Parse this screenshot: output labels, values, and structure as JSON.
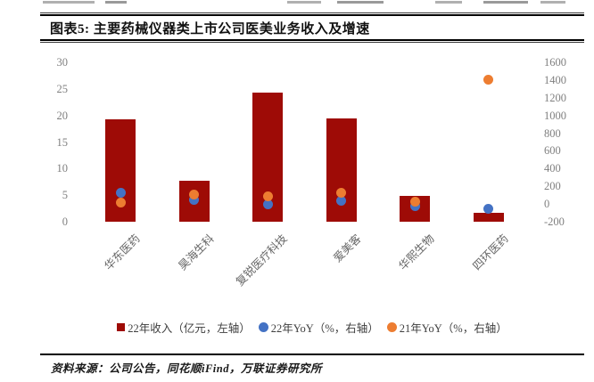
{
  "header": {
    "title": "图表5: 主要药械仪器类上市公司医美业务收入及增速"
  },
  "chart_data": {
    "type": "bar",
    "title": "主要药械仪器类上市公司医美业务收入及增速",
    "categories": [
      "华东医药",
      "昊海生科",
      "复锐医疗科技",
      "爱美客",
      "华熙生物",
      "四环医药"
    ],
    "series": [
      {
        "name": "22年收入（亿元，左轴）",
        "type": "bar",
        "axis": "left",
        "marker": "square",
        "color": "#9E0B06",
        "values": [
          19.3,
          7.7,
          24.3,
          19.4,
          4.8,
          1.7
        ]
      },
      {
        "name": "22年YoY（%，右轴）",
        "type": "scatter",
        "axis": "right",
        "marker": "circle",
        "color": "#4472C4",
        "values": [
          130,
          50,
          0,
          40,
          -20,
          -50
        ]
      },
      {
        "name": "21年YoY（%，右轴）",
        "type": "scatter",
        "axis": "right",
        "marker": "circle",
        "color": "#ED7D31",
        "values": [
          15,
          110,
          85,
          130,
          30,
          1400
        ]
      }
    ],
    "left_axis": {
      "min": 0,
      "max": 30,
      "ticks": [
        30,
        25,
        20,
        15,
        10,
        5,
        0
      ]
    },
    "right_axis": {
      "min": -200,
      "max": 1600,
      "ticks": [
        1600,
        1400,
        1200,
        1000,
        800,
        600,
        400,
        200,
        0,
        -200
      ]
    },
    "grid": false,
    "legend_position": "bottom"
  },
  "footer": {
    "source": "资料来源：公司公告，同花顺iFind，万联证券研究所"
  },
  "colors": {
    "bar_red": "#9E0B06",
    "dot_blue": "#4472C4",
    "dot_orange": "#ED7D31",
    "axis_text": "#7F7F7F",
    "rule_black": "#000000"
  }
}
